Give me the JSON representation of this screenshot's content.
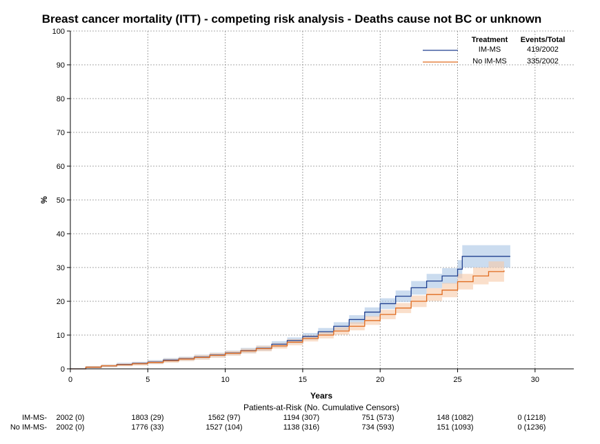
{
  "chart_data": {
    "type": "line",
    "title": "Breast cancer mortality (ITT) - competing risk analysis - Deaths cause not BC or unknown",
    "xlabel": "Years",
    "ylabel": "%",
    "xlim": [
      0,
      32.5
    ],
    "ylim": [
      0,
      100
    ],
    "x_ticks": [
      "0",
      "5",
      "10",
      "15",
      "20",
      "25",
      "30"
    ],
    "y_ticks": [
      "0",
      "10",
      "20",
      "30",
      "40",
      "50",
      "60",
      "70",
      "80",
      "90",
      "100"
    ],
    "grid": true,
    "legend_position": "top-right",
    "legend": {
      "header_treatment": "Treatment",
      "header_events": "Events/Total",
      "rows": [
        {
          "name": "IM-MS",
          "events": "419/2002"
        },
        {
          "name": "No IM-MS",
          "events": "335/2002"
        }
      ]
    },
    "series": [
      {
        "name": "IM-MS",
        "color": "#1f3f8f",
        "band_color": "#a9c4e4",
        "x": [
          0,
          1,
          2,
          3,
          4,
          5,
          6,
          7,
          8,
          9,
          10,
          11,
          12,
          13,
          14,
          15,
          16,
          17,
          18,
          19,
          20,
          21,
          22,
          23,
          24,
          25,
          25.3,
          26,
          27,
          28,
          28.4
        ],
        "y": [
          0,
          0.5,
          0.9,
          1.3,
          1.6,
          2.0,
          2.6,
          3.0,
          3.5,
          4.1,
          4.7,
          5.4,
          6.1,
          7.3,
          8.4,
          9.6,
          11.0,
          12.6,
          14.6,
          16.8,
          19.3,
          21.5,
          24.0,
          26.0,
          27.5,
          29.5,
          33.3,
          33.3,
          33.3,
          33.3,
          33.3
        ],
        "lower": [
          0,
          0.2,
          0.5,
          0.8,
          1.1,
          1.4,
          2.0,
          2.4,
          2.8,
          3.4,
          4.0,
          4.6,
          5.3,
          6.4,
          7.5,
          8.6,
          9.9,
          11.4,
          13.3,
          15.4,
          17.7,
          19.8,
          22.0,
          23.9,
          25.2,
          26.8,
          30.0,
          30.0,
          30.0,
          30.0,
          30.0
        ],
        "upper": [
          0,
          0.8,
          1.3,
          1.8,
          2.1,
          2.6,
          3.2,
          3.6,
          4.2,
          4.8,
          5.4,
          6.2,
          6.9,
          8.2,
          9.3,
          10.6,
          12.1,
          13.8,
          15.9,
          18.2,
          20.9,
          23.2,
          26.0,
          28.1,
          29.8,
          32.2,
          36.6,
          36.6,
          36.6,
          36.6,
          36.6
        ]
      },
      {
        "name": "No IM-MS",
        "color": "#e06b1f",
        "band_color": "#f6c9a8",
        "x": [
          0,
          1,
          2,
          3,
          4,
          5,
          6,
          7,
          8,
          9,
          10,
          11,
          12,
          13,
          14,
          15,
          16,
          17,
          18,
          19,
          20,
          21,
          22,
          23,
          24,
          25,
          26,
          27,
          28
        ],
        "y": [
          0,
          0.5,
          0.9,
          1.2,
          1.5,
          1.9,
          2.4,
          2.9,
          3.4,
          4.0,
          4.6,
          5.3,
          6.0,
          6.8,
          7.9,
          9.0,
          10.0,
          11.2,
          12.6,
          14.3,
          16.1,
          18.0,
          20.0,
          22.0,
          23.3,
          25.8,
          27.5,
          28.8,
          29.1
        ],
        "lower": [
          0,
          0.2,
          0.5,
          0.8,
          1.0,
          1.4,
          1.8,
          2.3,
          2.7,
          3.3,
          3.9,
          4.6,
          5.2,
          6.0,
          7.0,
          8.1,
          9.0,
          10.1,
          11.4,
          13.0,
          14.7,
          16.5,
          18.3,
          20.1,
          21.2,
          23.5,
          25.0,
          25.8,
          25.8
        ],
        "upper": [
          0,
          0.8,
          1.3,
          1.6,
          2.0,
          2.4,
          3.0,
          3.5,
          4.1,
          4.7,
          5.3,
          6.0,
          6.8,
          7.6,
          8.8,
          9.9,
          11.0,
          12.3,
          13.8,
          15.6,
          17.5,
          19.5,
          21.7,
          23.9,
          25.4,
          28.1,
          30.0,
          31.8,
          32.4
        ]
      }
    ],
    "patients_at_risk": {
      "title": "Patients-at-Risk (No. Cumulative Censors)",
      "rows": [
        {
          "label": "IM-MS-",
          "values": [
            "2002 (0)",
            "1803 (29)",
            "1562 (97)",
            "1194 (307)",
            "751 (573)",
            "148 (1082)",
            "0 (1218)"
          ]
        },
        {
          "label": "No IM-MS-",
          "values": [
            "2002 (0)",
            "1776 (33)",
            "1527 (104)",
            "1138 (316)",
            "734 (593)",
            "151 (1093)",
            "0 (1236)"
          ]
        }
      ]
    }
  }
}
